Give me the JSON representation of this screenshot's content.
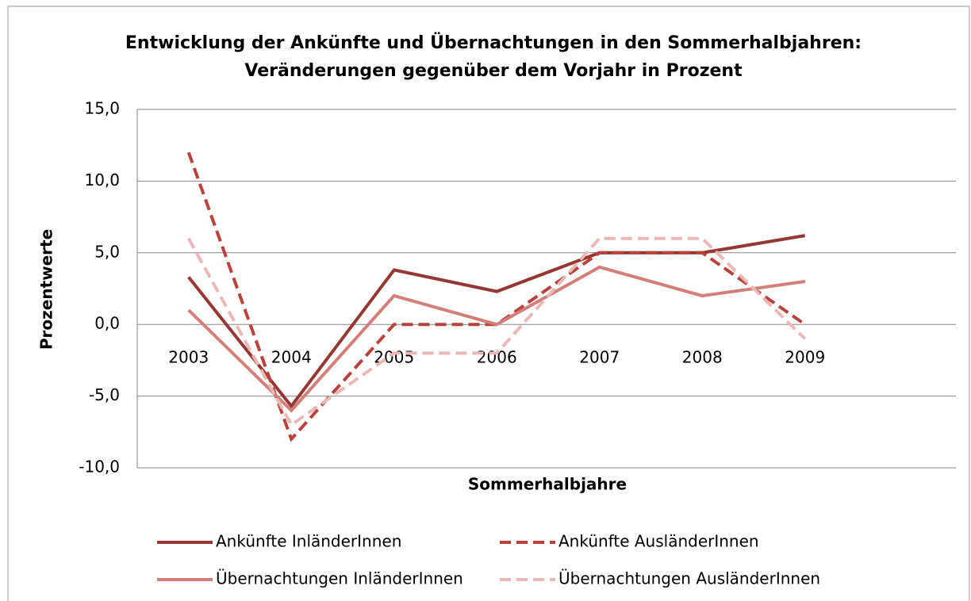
{
  "chart_data": {
    "type": "line",
    "title": "Entwicklung der Ankünfte und Übernachtungen in den Sommerhalbjahren:",
    "subtitle": "Veränderungen gegenüber dem Vorjahr in Prozent",
    "x_label": "Sommerhalbjahre",
    "y_label": "Prozentwerte",
    "categories": [
      "2003",
      "2004",
      "2005",
      "2006",
      "2007",
      "2008",
      "2009"
    ],
    "ylim": [
      -10,
      15
    ],
    "yticks": [
      {
        "value": -10,
        "label": "-10,0"
      },
      {
        "value": -5,
        "label": "-5,0"
      },
      {
        "value": 0,
        "label": "0,0"
      },
      {
        "value": 5,
        "label": "5,0"
      },
      {
        "value": 10,
        "label": "10,0"
      },
      {
        "value": 15,
        "label": "15,0"
      }
    ],
    "grid": true,
    "series": [
      {
        "name": "Ankünfte InländerInnen",
        "color": "#953735",
        "dash": false,
        "values": [
          3.3,
          -5.7,
          3.8,
          2.3,
          5.0,
          5.0,
          6.2
        ]
      },
      {
        "name": "Ankünfte AusländerInnen",
        "color": "#b9423f",
        "dash": true,
        "values": [
          12.0,
          -8.0,
          0.0,
          0.0,
          5.0,
          5.0,
          0.0
        ]
      },
      {
        "name": "Übernachtungen InländerInnen",
        "color": "#d27f7c",
        "dash": false,
        "values": [
          1.0,
          -6.0,
          2.0,
          0.0,
          4.0,
          2.0,
          3.0
        ]
      },
      {
        "name": "Übernachtungen AusländerInnen",
        "color": "#e8b9b7",
        "dash": true,
        "values": [
          6.0,
          -7.0,
          -2.0,
          -2.0,
          6.0,
          6.0,
          -1.0
        ]
      }
    ]
  }
}
